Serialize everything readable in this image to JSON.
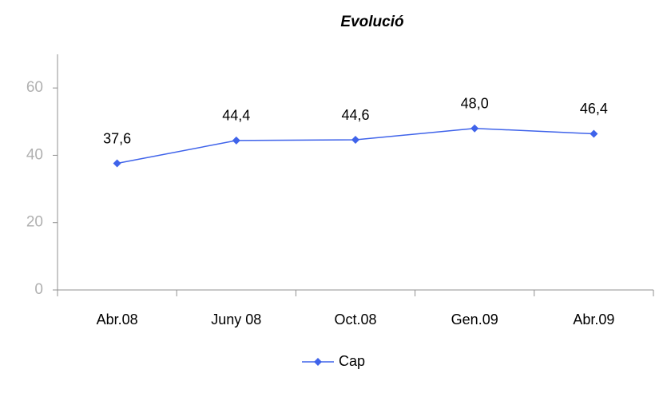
{
  "chart_data": {
    "type": "line",
    "title": "Evolució",
    "categories": [
      "Abr.08",
      "Juny 08",
      "Oct.08",
      "Gen.09",
      "Abr.09"
    ],
    "series": [
      {
        "name": "Cap",
        "color": "#3f63ea",
        "values": [
          37.6,
          44.4,
          44.6,
          48.0,
          46.4
        ],
        "value_labels": [
          "37,6",
          "44,4",
          "44,6",
          "48,0",
          "46,4"
        ]
      }
    ],
    "ylim": [
      0,
      70
    ],
    "yticks": [
      0,
      20,
      40,
      60
    ],
    "grid": false,
    "legend": "bottom"
  }
}
